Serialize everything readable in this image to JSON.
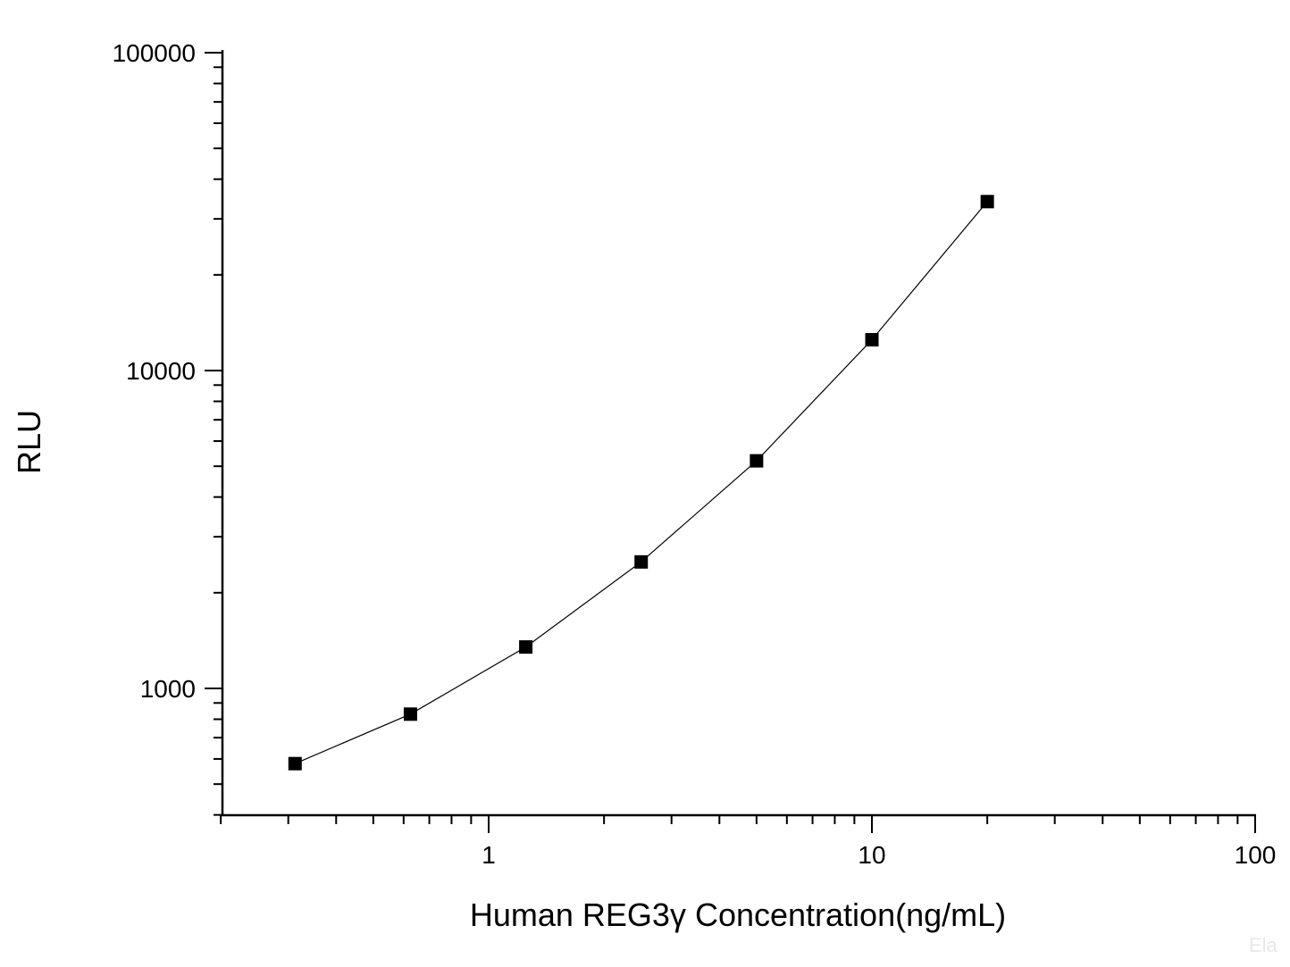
{
  "chart_data": {
    "type": "line",
    "xlabel": "Human  REG3γ   Concentration(ng/mL)",
    "ylabel": "RLU",
    "x_scale": "log",
    "y_scale": "log",
    "xlim": [
      0.2,
      100
    ],
    "ylim": [
      400,
      100000
    ],
    "x_ticks": [
      {
        "value": 1,
        "label": "1"
      },
      {
        "value": 10,
        "label": "10"
      },
      {
        "value": 100,
        "label": "100"
      }
    ],
    "y_ticks": [
      {
        "value": 1000,
        "label": "1000"
      },
      {
        "value": 10000,
        "label": "10000"
      },
      {
        "value": 100000,
        "label": "100000"
      }
    ],
    "grid": false,
    "marker": "square",
    "color": "#000000",
    "series": [
      {
        "x": [
          0.3125,
          0.625,
          1.25,
          2.5,
          5,
          10,
          20
        ],
        "y": [
          580,
          830,
          1350,
          2500,
          5200,
          12500,
          34000
        ]
      }
    ],
    "watermark": "Ela"
  }
}
